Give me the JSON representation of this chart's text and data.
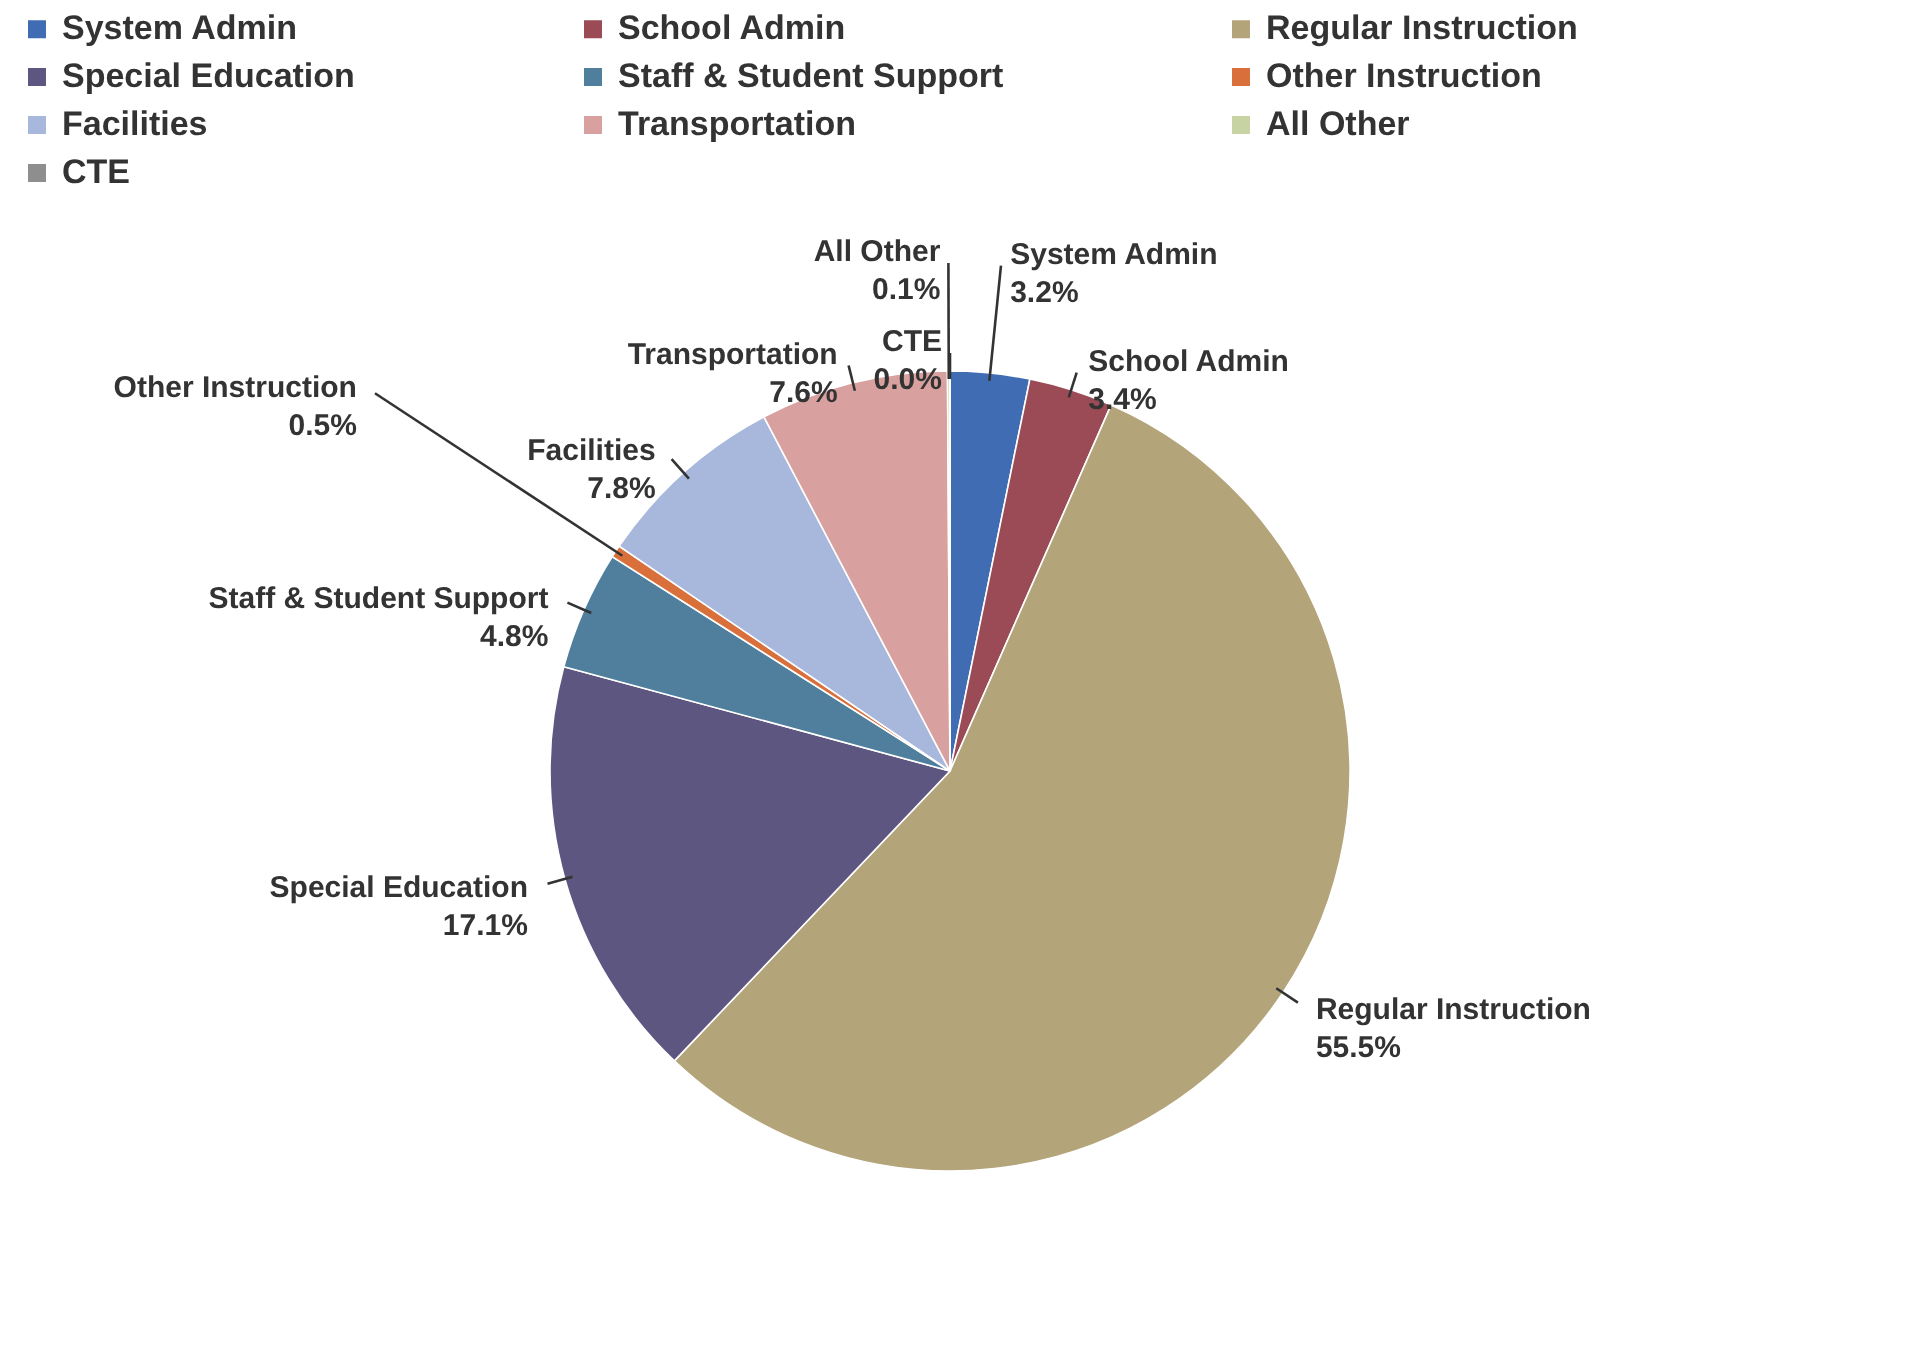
{
  "chart_data": {
    "type": "pie",
    "categories": [
      "System Admin",
      "School Admin",
      "Regular Instruction",
      "Special Education",
      "Staff & Student Support",
      "Other Instruction",
      "Facilities",
      "Transportation",
      "All Other",
      "CTE"
    ],
    "values": [
      3.2,
      3.4,
      55.5,
      17.1,
      4.8,
      0.5,
      7.8,
      7.6,
      0.1,
      0.0
    ],
    "value_labels": [
      "3.2%",
      "3.4%",
      "55.5%",
      "17.1%",
      "4.8%",
      "0.5%",
      "7.8%",
      "7.6%",
      "0.1%",
      "0.0%"
    ],
    "colors": [
      "#3f6cb3",
      "#9a4b55",
      "#b3a47a",
      "#5d5680",
      "#4f7f9c",
      "#d9703c",
      "#a8b7dc",
      "#d8a19f",
      "#c8d3a3",
      "#8e8e8e"
    ],
    "data_labels": true,
    "legend": "top left"
  }
}
